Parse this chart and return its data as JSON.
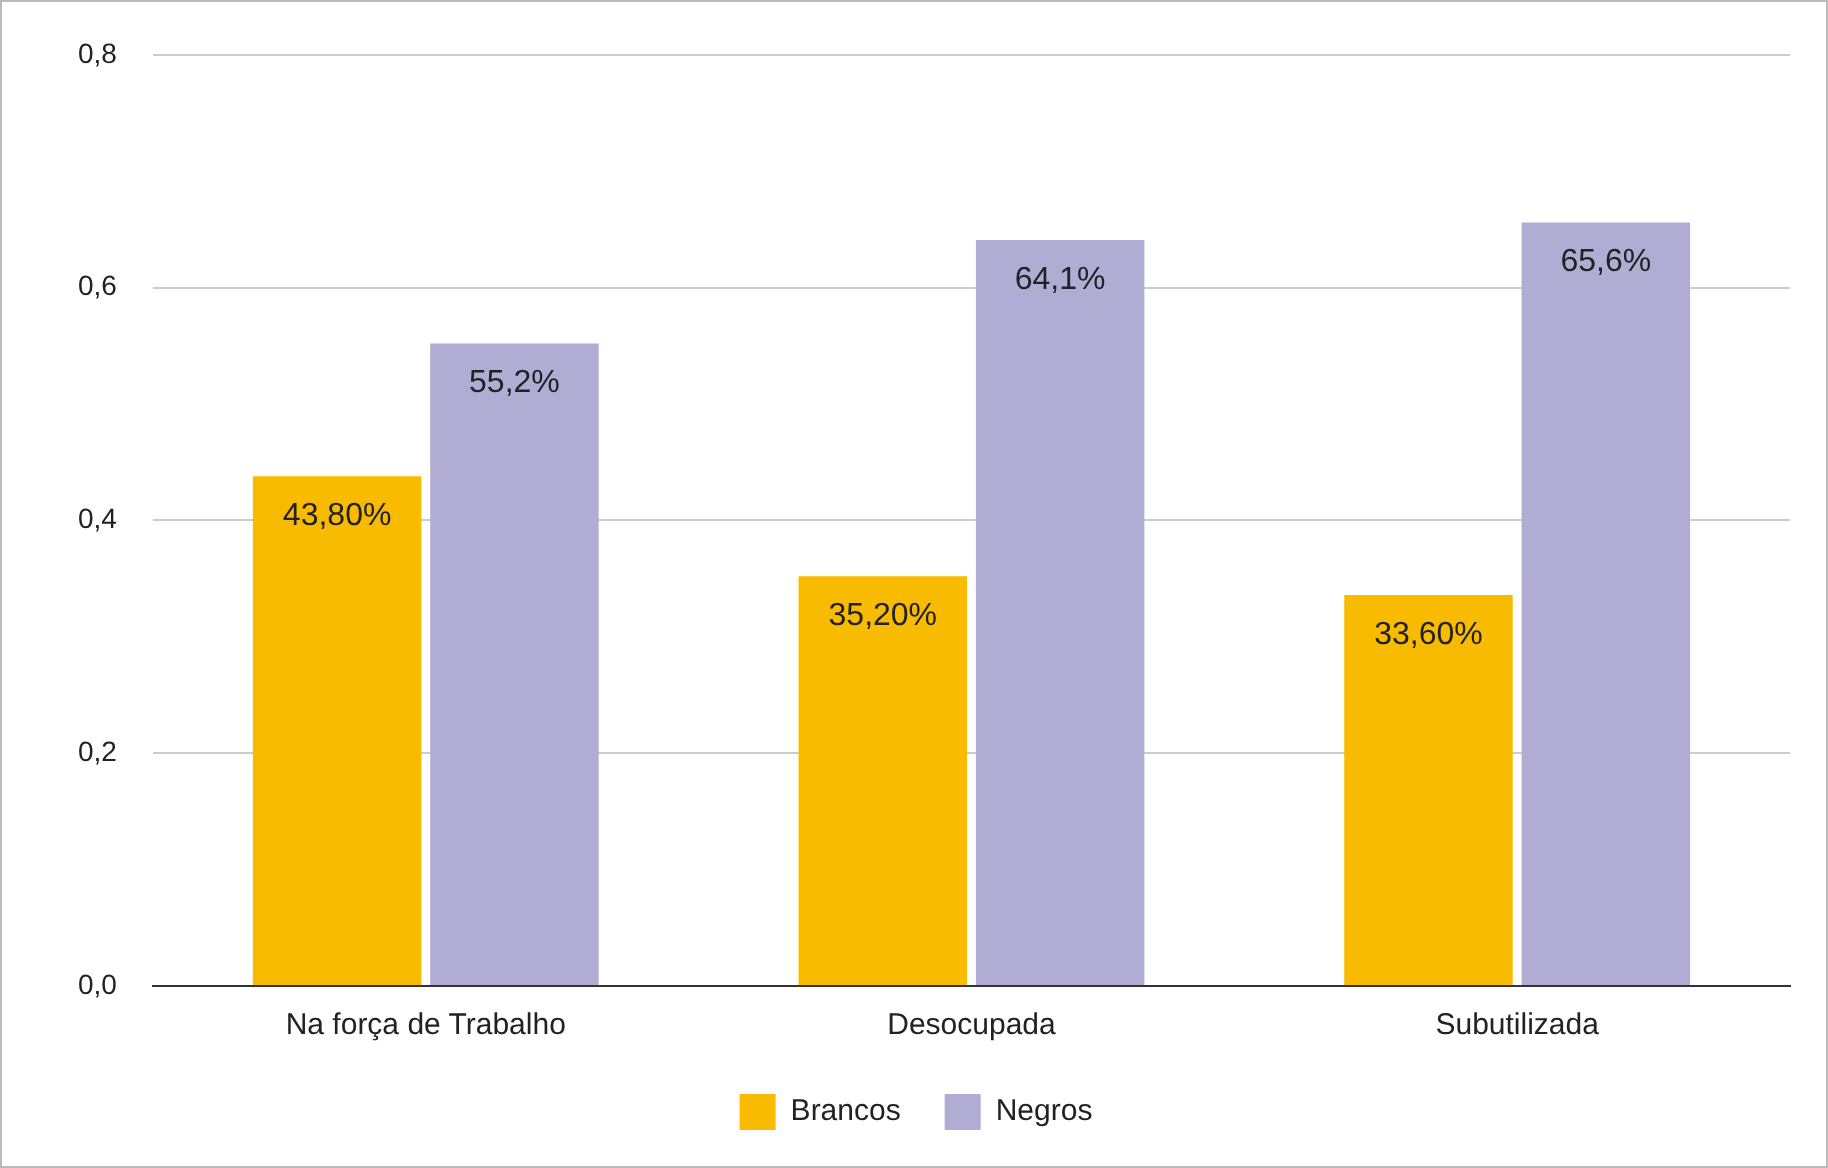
{
  "chart_data": {
    "type": "bar",
    "categories": [
      "Na força de Trabalho",
      "Desocupada",
      "Subutilizada"
    ],
    "series": [
      {
        "name": "Brancos",
        "color": "#f9bb00",
        "values": [
          0.438,
          0.352,
          0.336
        ],
        "value_labels": [
          "43,80%",
          "35,20%",
          "33,60%"
        ]
      },
      {
        "name": "Negros",
        "color": "#b1acd4",
        "values": [
          0.552,
          0.641,
          0.656
        ],
        "value_labels": [
          "55,2%",
          "64,1%",
          "65,6%"
        ]
      }
    ],
    "ylim": [
      0,
      0.8
    ],
    "yticks": [
      {
        "value": 0,
        "label": "0,0"
      },
      {
        "value": 0.2,
        "label": "0,2"
      },
      {
        "value": 0.4,
        "label": "0,4"
      },
      {
        "value": 0.6,
        "label": "0,6"
      },
      {
        "value": 0.8,
        "label": "0,8"
      }
    ],
    "grid": "y",
    "legend": "bottom"
  }
}
